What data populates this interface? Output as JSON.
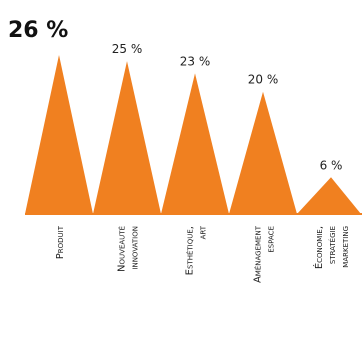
{
  "chart_data": {
    "type": "bar",
    "categories": [
      "Produit",
      "Nouveauté innovation",
      "Esthétique, art",
      "Aménagement espace",
      "Économie, stratégie marketing"
    ],
    "category_lines": [
      [
        "Produit"
      ],
      [
        "Nouveauté",
        "innovation"
      ],
      [
        "Esthétique,",
        "art"
      ],
      [
        "Aménagement",
        "espace"
      ],
      [
        "Économie,",
        "stratégie",
        "marketing"
      ]
    ],
    "values": [
      26,
      25,
      23,
      20,
      6
    ],
    "value_labels": [
      "26 %",
      "25 %",
      "23 %",
      "20 %",
      "6 %"
    ],
    "ylim": [
      0,
      26
    ],
    "colors": {
      "bar": "#f08020"
    }
  }
}
